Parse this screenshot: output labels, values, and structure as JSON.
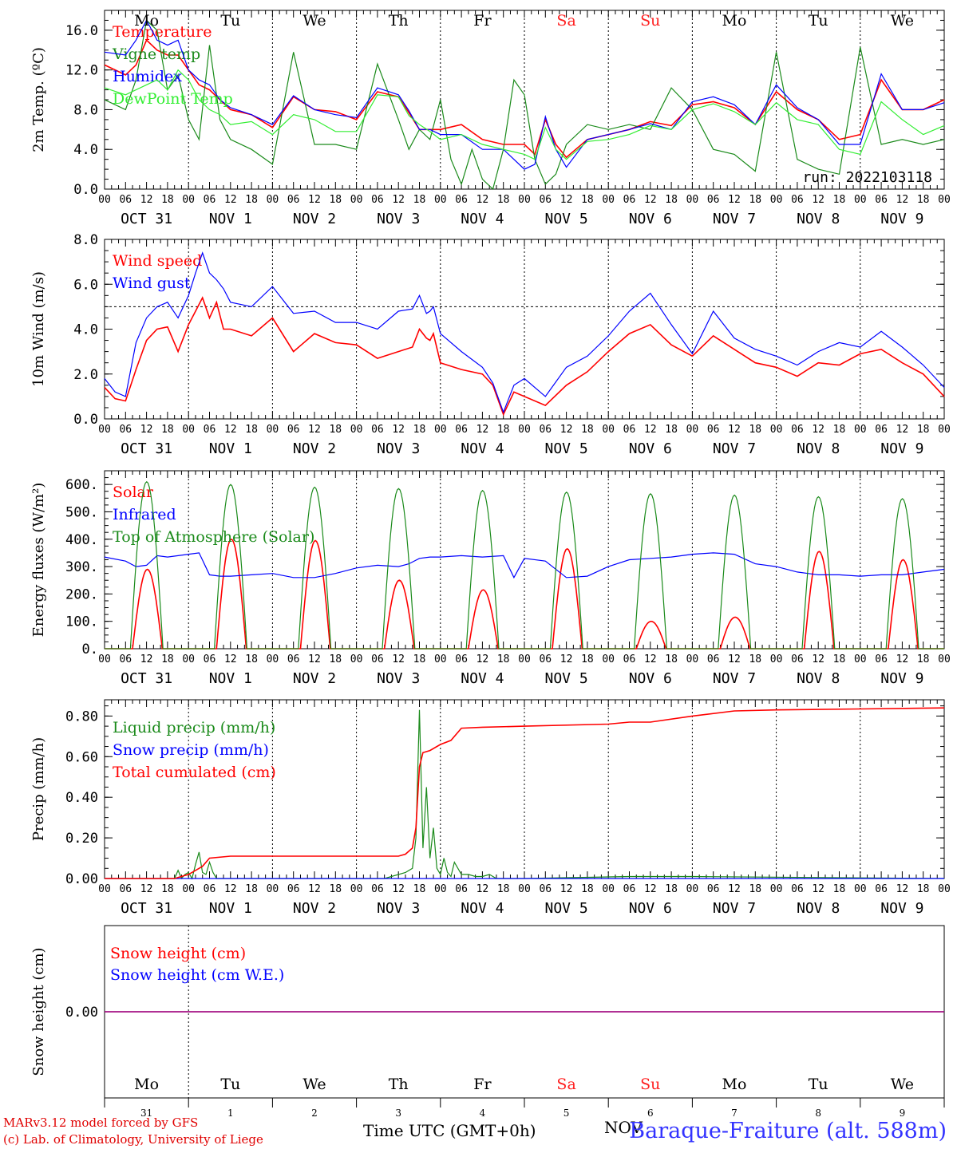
{
  "colors": {
    "red": "#ff0000",
    "green": "#1a8a1a",
    "blue": "#0000ff",
    "lightgreen": "#33ee33",
    "purple": "#8000a0",
    "weekend": "#ff2020"
  },
  "axis": {
    "days": [
      "Mo",
      "Tu",
      "We",
      "Th",
      "Fr",
      "Sa",
      "Su",
      "Mo",
      "Tu",
      "We"
    ],
    "weekend_days": [
      5,
      6
    ],
    "hours": [
      "00",
      "06",
      "12",
      "18"
    ],
    "hours_end": "00",
    "dates": [
      "OCT 31",
      "NOV  1",
      "NOV  2",
      "NOV  3",
      "NOV  4",
      "NOV  5",
      "NOV  6",
      "NOV  7",
      "NOV  8",
      "NOV  9"
    ],
    "day_numbers": [
      "31",
      "1",
      "2",
      "3",
      "4",
      "5",
      "6",
      "7",
      "8",
      "9"
    ]
  },
  "footer": {
    "model": "MARv3.12 model forced by GFS",
    "credit": "(c) Lab. of Climatology, University of Liege",
    "xlabel": "Time UTC (GMT+0h)",
    "overlap": "NOV",
    "station": "Baraque-Fraiture (alt. 588m)"
  },
  "chart_data": [
    {
      "type": "line",
      "ylabel": "2m Temp. (ºC)",
      "ylim": [
        0,
        18
      ],
      "yticks": [
        "0.0",
        "4.0",
        "8.0",
        "12.0",
        "16.0"
      ],
      "run_label": "run: 2022103118",
      "x_unit": "hours since 2022-10-31 00 UTC",
      "series": [
        {
          "name": "Temperature",
          "color": "red",
          "x": [
            0,
            6,
            9,
            12,
            15,
            18,
            21,
            24,
            27,
            30,
            33,
            36,
            42,
            48,
            54,
            60,
            66,
            72,
            78,
            84,
            87,
            90,
            93,
            96,
            102,
            108,
            114,
            120,
            123,
            126,
            129,
            132,
            138,
            144,
            150,
            156,
            162,
            168,
            174,
            180,
            186,
            192,
            198,
            204,
            210,
            216,
            222,
            228,
            234,
            240
          ],
          "y": [
            12.5,
            11.5,
            12.5,
            15,
            14,
            13.5,
            13.5,
            12,
            10.5,
            10,
            9,
            8,
            7.5,
            6.2,
            9.3,
            8,
            7.8,
            7,
            9.8,
            9.3,
            7.7,
            6,
            6,
            6,
            6.5,
            5,
            4.5,
            4.5,
            3.5,
            7,
            4.5,
            3.2,
            5,
            5.5,
            6,
            6.8,
            6.4,
            8.5,
            8.8,
            8.2,
            6.5,
            9.8,
            8,
            7,
            5,
            5.5,
            11,
            8,
            8,
            9
          ]
        },
        {
          "name": "Vigne temp",
          "color": "green",
          "x": [
            0,
            6,
            9,
            12,
            15,
            18,
            21,
            24,
            27,
            30,
            33,
            36,
            42,
            48,
            54,
            60,
            66,
            72,
            78,
            84,
            87,
            90,
            93,
            96,
            99,
            102,
            105,
            108,
            111,
            114,
            117,
            120,
            123,
            126,
            129,
            132,
            138,
            144,
            150,
            156,
            162,
            168,
            174,
            180,
            186,
            192,
            198,
            204,
            210,
            216,
            222,
            228,
            234,
            240
          ],
          "y": [
            9,
            8,
            11,
            17,
            16,
            10,
            11.5,
            7,
            5,
            14.5,
            7,
            5,
            4,
            2.5,
            13.8,
            4.5,
            4.5,
            4,
            12.6,
            7,
            4,
            6,
            5,
            9,
            3,
            0.5,
            4,
            1,
            0,
            4,
            11,
            9.5,
            3,
            0.5,
            1.5,
            4.5,
            6.5,
            6,
            6.5,
            6,
            10.2,
            8,
            4,
            3.5,
            1.8,
            13.8,
            3,
            2,
            1.5,
            14.3,
            4.5,
            5,
            4.5,
            5
          ]
        },
        {
          "name": "Humidex",
          "color": "blue",
          "x": [
            0,
            6,
            9,
            12,
            15,
            18,
            21,
            24,
            27,
            30,
            33,
            36,
            42,
            48,
            54,
            60,
            66,
            72,
            78,
            84,
            87,
            90,
            93,
            96,
            102,
            108,
            114,
            120,
            123,
            126,
            129,
            132,
            138,
            144,
            150,
            156,
            162,
            168,
            174,
            180,
            186,
            192,
            198,
            204,
            210,
            216,
            222,
            228,
            234,
            240
          ],
          "y": [
            13.8,
            13.5,
            15,
            17,
            15,
            14.5,
            15,
            12,
            11,
            10.5,
            9,
            8.2,
            7.5,
            6.5,
            9.4,
            8,
            7.5,
            7.2,
            10.2,
            9.5,
            7.9,
            6,
            6,
            5.5,
            5.5,
            4,
            4,
            2,
            2.5,
            7.3,
            4,
            2.2,
            5,
            5.5,
            6,
            6.6,
            6,
            8.8,
            9.3,
            8.5,
            6.5,
            10.5,
            8.2,
            7,
            4.5,
            4.5,
            11.6,
            8,
            8,
            8.7
          ]
        },
        {
          "name": "DewPoint Temp",
          "color": "lightgreen",
          "x": [
            0,
            6,
            9,
            12,
            15,
            18,
            21,
            24,
            27,
            30,
            33,
            36,
            42,
            48,
            54,
            60,
            66,
            72,
            78,
            84,
            87,
            90,
            93,
            96,
            102,
            108,
            114,
            120,
            123,
            126,
            129,
            132,
            138,
            144,
            150,
            156,
            162,
            168,
            174,
            180,
            186,
            192,
            198,
            204,
            210,
            216,
            222,
            228,
            234,
            240
          ],
          "y": [
            10.2,
            9.5,
            10,
            10.5,
            11,
            10,
            12,
            11,
            9,
            8,
            7.5,
            6.5,
            6.8,
            5.5,
            7.5,
            7,
            5.8,
            5.8,
            9.5,
            9.3,
            7.4,
            6.5,
            5.8,
            5,
            5.5,
            4.5,
            4,
            3.5,
            3,
            6.2,
            4,
            3,
            4.8,
            5,
            5.5,
            6.4,
            6,
            8,
            8.6,
            7.8,
            6.5,
            8.7,
            7,
            6.5,
            4,
            3.5,
            8.8,
            7,
            5.5,
            6.4
          ]
        }
      ]
    },
    {
      "type": "line",
      "ylabel": "10m Wind (m/s)",
      "ylim": [
        0,
        8
      ],
      "yticks": [
        "0.0",
        "2.0",
        "4.0",
        "6.0",
        "8.0"
      ],
      "reference_line": 5,
      "x_unit": "hours since 2022-10-31 00 UTC",
      "series": [
        {
          "name": "Wind speed",
          "color": "red",
          "x": [
            0,
            3,
            6,
            9,
            12,
            15,
            18,
            21,
            24,
            26,
            28,
            30,
            32,
            34,
            36,
            42,
            48,
            54,
            60,
            66,
            72,
            78,
            84,
            88,
            90,
            92,
            93,
            94,
            96,
            102,
            108,
            111,
            114,
            117,
            120,
            126,
            132,
            138,
            144,
            150,
            156,
            162,
            168,
            174,
            180,
            186,
            192,
            198,
            204,
            210,
            216,
            222,
            228,
            234,
            240
          ],
          "y": [
            1.4,
            0.9,
            0.8,
            2.2,
            3.5,
            4,
            4.1,
            3,
            4.2,
            4.8,
            5.4,
            4.5,
            5.2,
            4,
            4,
            3.7,
            4.5,
            3,
            3.8,
            3.4,
            3.3,
            2.7,
            3,
            3.2,
            4,
            3.6,
            3.5,
            3.8,
            2.5,
            2.2,
            2,
            1.5,
            0.2,
            1.2,
            1,
            0.6,
            1.5,
            2.1,
            3,
            3.8,
            4.2,
            3.3,
            2.8,
            3.7,
            3.1,
            2.5,
            2.3,
            1.9,
            2.5,
            2.4,
            2.9,
            3.1,
            2.5,
            2,
            1
          ]
        },
        {
          "name": "Wind gust",
          "color": "blue",
          "x": [
            0,
            3,
            6,
            9,
            12,
            15,
            18,
            21,
            24,
            26,
            28,
            30,
            32,
            34,
            36,
            42,
            48,
            54,
            60,
            66,
            72,
            78,
            84,
            88,
            90,
            92,
            93,
            94,
            96,
            102,
            108,
            111,
            114,
            117,
            120,
            126,
            132,
            138,
            144,
            150,
            156,
            162,
            168,
            174,
            180,
            186,
            192,
            198,
            204,
            210,
            216,
            222,
            228,
            234,
            240
          ],
          "y": [
            1.8,
            1.2,
            1,
            3.4,
            4.5,
            5,
            5.2,
            4.5,
            5.5,
            6.5,
            7.4,
            6.5,
            6.2,
            5.8,
            5.2,
            5,
            5.9,
            4.7,
            4.8,
            4.3,
            4.3,
            4,
            4.8,
            4.9,
            5.5,
            4.7,
            4.8,
            5,
            3.8,
            3,
            2.3,
            1.6,
            0.3,
            1.5,
            1.8,
            1,
            2.3,
            2.8,
            3.7,
            4.8,
            5.6,
            4.2,
            2.9,
            4.8,
            3.6,
            3.1,
            2.8,
            2.4,
            3,
            3.4,
            3.2,
            3.9,
            3.2,
            2.4,
            1.4
          ]
        }
      ]
    },
    {
      "type": "line",
      "ylabel": "Energy fluxes (W/m²)",
      "ylim": [
        0,
        650
      ],
      "yticks": [
        "0.",
        "100.",
        "200.",
        "300.",
        "400.",
        "500.",
        "600."
      ],
      "x_unit": "hours since 2022-10-31 00 UTC",
      "series": [
        {
          "name": "Solar",
          "color": "red",
          "peaks": [
            290,
            400,
            395,
            250,
            215,
            365,
            100,
            115,
            355,
            325
          ],
          "rise_hour": 8,
          "set_hour": 16.5
        },
        {
          "name": "Infrared",
          "color": "blue",
          "x": [
            0,
            6,
            9,
            12,
            15,
            18,
            21,
            24,
            27,
            30,
            33,
            36,
            42,
            48,
            54,
            60,
            66,
            72,
            78,
            84,
            87,
            90,
            93,
            96,
            102,
            108,
            114,
            117,
            120,
            126,
            132,
            138,
            144,
            150,
            156,
            162,
            168,
            174,
            180,
            186,
            192,
            198,
            204,
            210,
            216,
            222,
            228,
            234,
            240
          ],
          "y": [
            335,
            320,
            300,
            305,
            340,
            335,
            340,
            345,
            350,
            270,
            265,
            265,
            270,
            275,
            260,
            260,
            275,
            295,
            305,
            300,
            310,
            330,
            335,
            335,
            340,
            335,
            340,
            260,
            330,
            320,
            260,
            265,
            300,
            325,
            330,
            335,
            345,
            350,
            345,
            310,
            300,
            280,
            270,
            270,
            265,
            270,
            270,
            280,
            290
          ]
        },
        {
          "name": "Top of Atmosphere (Solar)",
          "color": "green",
          "peaks": [
            610,
            600,
            590,
            585,
            578,
            572,
            566,
            561,
            555,
            548
          ],
          "rise_hour": 7.4,
          "set_hour": 16.7
        }
      ]
    },
    {
      "type": "line",
      "ylabel": "Precip (mm/h)",
      "ylim": [
        0,
        0.88
      ],
      "yticks": [
        "0.00",
        "0.20",
        "0.40",
        "0.60",
        "0.80"
      ],
      "x_unit": "hours since 2022-10-31 00 UTC",
      "series": [
        {
          "name": "Liquid precip (mm/h)",
          "color": "green",
          "x": [
            0,
            20,
            21,
            22,
            23,
            24,
            25,
            26,
            27,
            28,
            29,
            30,
            31,
            32,
            33,
            36,
            80,
            86,
            88,
            89,
            90,
            91,
            92,
            93,
            94,
            95,
            96,
            97,
            98,
            99,
            100,
            102,
            104,
            106,
            108,
            110,
            112,
            120,
            150,
            168,
            240
          ],
          "y": [
            0,
            0,
            0.04,
            0,
            0.02,
            0.03,
            0,
            0.07,
            0.13,
            0.03,
            0.02,
            0.08,
            0.03,
            0,
            0,
            0,
            0,
            0.03,
            0.05,
            0.2,
            0.83,
            0.15,
            0.45,
            0.1,
            0.25,
            0.05,
            0.02,
            0.1,
            0.03,
            0.01,
            0.08,
            0.02,
            0.02,
            0.01,
            0.01,
            0.02,
            0,
            0,
            0.01,
            0.01,
            0
          ]
        },
        {
          "name": "Snow precip (mm/h)",
          "color": "blue",
          "x": [
            0,
            240
          ],
          "y": [
            0,
            0
          ]
        },
        {
          "name": "Total cumulated (cm)",
          "color": "red",
          "x": [
            0,
            20,
            24,
            27,
            28,
            30,
            36,
            60,
            84,
            86,
            88,
            89,
            90,
            91,
            93,
            96,
            99,
            102,
            108,
            120,
            144,
            150,
            156,
            168,
            180,
            192,
            216,
            240
          ],
          "y": [
            0,
            0,
            0.02,
            0.05,
            0.06,
            0.1,
            0.11,
            0.11,
            0.11,
            0.12,
            0.15,
            0.25,
            0.55,
            0.62,
            0.63,
            0.66,
            0.68,
            0.74,
            0.745,
            0.75,
            0.76,
            0.77,
            0.77,
            0.8,
            0.825,
            0.83,
            0.835,
            0.84
          ]
        }
      ]
    },
    {
      "type": "line",
      "ylabel": "Snow height (cm)",
      "yticks": [
        "0.00"
      ],
      "x_unit": "hours since 2022-10-31 00 UTC",
      "series": [
        {
          "name": "Snow height (cm)",
          "color": "red",
          "x": [
            0,
            240
          ],
          "y": [
            0,
            0
          ]
        },
        {
          "name": "Snow height (cm W.E.)",
          "color": "blue",
          "x": [
            0,
            240
          ],
          "y": [
            0,
            0
          ]
        }
      ]
    }
  ]
}
